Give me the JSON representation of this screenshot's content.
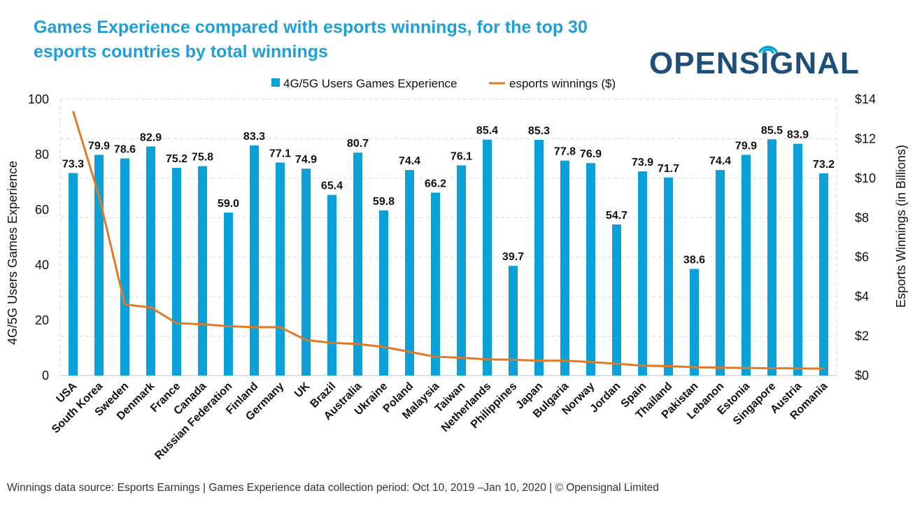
{
  "title": "Games Experience compared with esports winnings, for the top 30 esports countries by total winnings",
  "logo": {
    "text_left": "OPENS",
    "text_i": "I",
    "text_right": "GNAL",
    "color": "#1f4e79",
    "accent": "#0aa0d2"
  },
  "footer": "Winnings data source: Esports Earnings | Games Experience data collection period: Oct 10, 2019 –Jan 10, 2020 | © Opensignal Limited",
  "colors": {
    "title": "#1f9fd8",
    "bar": "#0aa0d8",
    "line": "#e07a26",
    "grid": "#d9d9d9"
  },
  "chart_data": {
    "type": "bar",
    "categories": [
      "USA",
      "South Korea",
      "Sweden",
      "Denmark",
      "France",
      "Canada",
      "Russian Federation",
      "Finland",
      "Germany",
      "UK",
      "Brazil",
      "Australia",
      "Ukraine",
      "Poland",
      "Malaysia",
      "Taiwan",
      "Netherlands",
      "Philippines",
      "Japan",
      "Bulgaria",
      "Norway",
      "Jordan",
      "Spain",
      "Thailand",
      "Pakistan",
      "Lebanon",
      "Estonia",
      "Singapore",
      "Austria",
      "Romania"
    ],
    "series": [
      {
        "name": "4G/5G Users Games Experience",
        "type": "bar",
        "axis": "left",
        "values": [
          73.3,
          79.9,
          78.6,
          82.9,
          75.2,
          75.8,
          59.0,
          83.3,
          77.1,
          74.9,
          65.4,
          80.7,
          59.8,
          74.4,
          66.2,
          76.1,
          85.4,
          39.7,
          85.3,
          77.8,
          76.9,
          54.7,
          73.9,
          71.7,
          38.6,
          74.4,
          79.9,
          85.5,
          83.9,
          73.2
        ],
        "labels": [
          "73.3",
          "79.9",
          "78.6",
          "82.9",
          "75.2",
          "75.8",
          "59.0",
          "83.3",
          "77.1",
          "74.9",
          "65.4",
          "80.7",
          "59.8",
          "74.4",
          "66.2",
          "76.1",
          "85.4",
          "39.7",
          "85.3",
          "77.8",
          "76.9",
          "54.7",
          "73.9",
          "71.7",
          "38.6",
          "74.4",
          "79.9",
          "85.5",
          "83.9",
          "73.2"
        ]
      },
      {
        "name": "esports winnings ($)",
        "type": "line",
        "axis": "right",
        "values": [
          13.4,
          9.1,
          3.6,
          3.45,
          2.65,
          2.6,
          2.5,
          2.45,
          2.45,
          1.8,
          1.65,
          1.6,
          1.45,
          1.2,
          0.95,
          0.9,
          0.82,
          0.8,
          0.75,
          0.75,
          0.68,
          0.6,
          0.5,
          0.48,
          0.42,
          0.4,
          0.38,
          0.37,
          0.36,
          0.35
        ]
      }
    ],
    "ylabel": "4G/5G Users Games Experience",
    "y2label": "Esports Winnings (in Billions)",
    "ylim": [
      0,
      100
    ],
    "yticks": [
      "0",
      "20",
      "40",
      "60",
      "80",
      "100"
    ],
    "y2lim": [
      0,
      14
    ],
    "y2ticks": [
      "$0",
      "$2",
      "$4",
      "$6",
      "$8",
      "$10",
      "$12",
      "$14"
    ],
    "legend": "top",
    "grid": true
  }
}
